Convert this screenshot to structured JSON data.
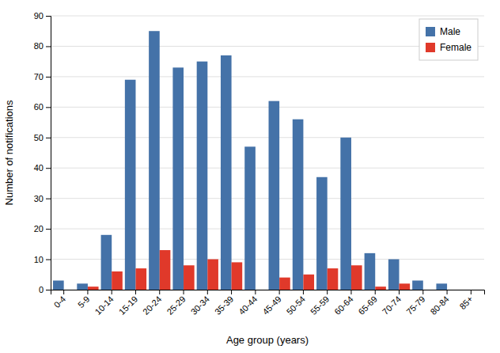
{
  "chart_data": {
    "type": "bar",
    "categories": [
      "0-4",
      "5-9",
      "10-14",
      "15-19",
      "20-24",
      "25-29",
      "30-34",
      "35-39",
      "40-44",
      "45-49",
      "50-54",
      "55-59",
      "60-64",
      "65-69",
      "70-74",
      "75-79",
      "80-84",
      "85+"
    ],
    "series": [
      {
        "name": "Male",
        "color": "#4472A8",
        "values": [
          3,
          2,
          18,
          69,
          85,
          73,
          75,
          77,
          47,
          62,
          56,
          37,
          50,
          12,
          10,
          3,
          2,
          0
        ]
      },
      {
        "name": "Female",
        "color": "#E0392A",
        "values": [
          0,
          1,
          6,
          7,
          13,
          8,
          10,
          9,
          0,
          4,
          5,
          7,
          8,
          1,
          2,
          0,
          0,
          0
        ]
      }
    ],
    "xlabel": "Age group (years)",
    "ylabel": "Number of notifications",
    "ylim": [
      0,
      90
    ],
    "yticks": [
      0,
      10,
      20,
      30,
      40,
      50,
      60,
      70,
      80,
      90
    ],
    "grid": true,
    "legend": "upper right"
  }
}
